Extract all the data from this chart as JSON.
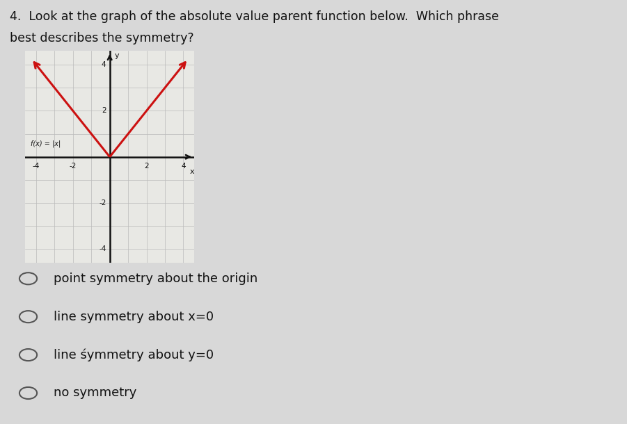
{
  "title_line1": "4.  Look at the graph of the absolute value parent function below.  Which phrase",
  "title_line2": "best describes the symmetry?",
  "options": [
    "point symmetry about the origin",
    "line symmetry about x=0",
    "line śymmetry about y=0",
    "no symmetry"
  ],
  "graph": {
    "xlim": [
      -4.6,
      4.6
    ],
    "ylim": [
      -4.6,
      4.6
    ],
    "grid_color": "#bbbbbb",
    "axis_color": "#111111",
    "function_color": "#cc1111",
    "background_color": "#e8e8e4",
    "label_text": "f(x) = |x|",
    "xlabel": "x",
    "ylabel": "y"
  },
  "bg_color": "#d8d8d8",
  "text_color": "#111111",
  "font_size_title": 12.5,
  "font_size_options": 13,
  "font_size_axis": 7.5,
  "radio_color": "#555555"
}
